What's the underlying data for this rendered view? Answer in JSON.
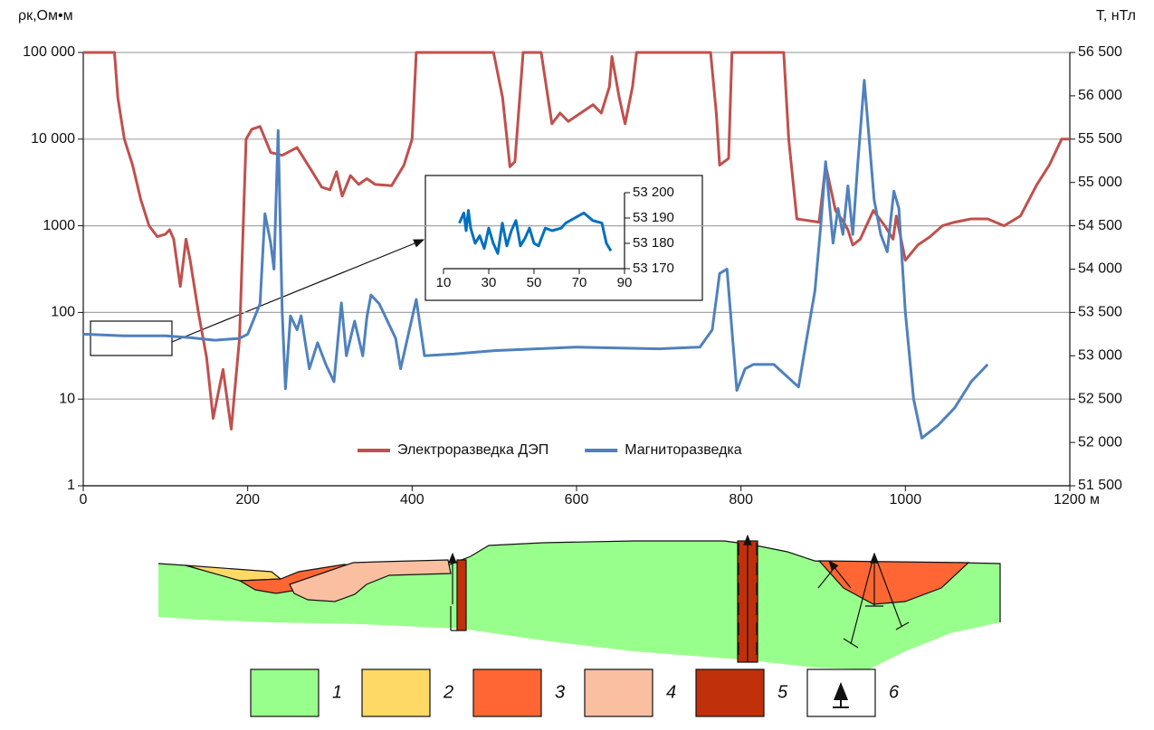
{
  "chart_data": [
    {
      "type": "line",
      "x_axis": "x",
      "yscale": "log",
      "grid": true,
      "legend": "bottom",
      "y_label": "ρк,Ом•м",
      "y2_label": "T, нТл",
      "xlim": [
        0,
        1200
      ],
      "xticks": [
        0,
        200,
        400,
        600,
        800,
        1000,
        {
          "value": 1200,
          "label": "1200 м"
        }
      ],
      "ylim": [
        1,
        100000
      ],
      "yticks": [
        1,
        10,
        100,
        1000,
        {
          "value": 10000,
          "label": "10 000"
        },
        {
          "value": 100000,
          "label": "100 000"
        }
      ],
      "y2lim": [
        51500,
        56500
      ],
      "y2ticks": [
        {
          "value": 51500,
          "label": "51 500"
        },
        {
          "value": 52000,
          "label": "52 000"
        },
        {
          "value": 52500,
          "label": "52 500"
        },
        {
          "value": 53000,
          "label": "53 000"
        },
        {
          "value": 53500,
          "label": "53 500"
        },
        {
          "value": 54000,
          "label": "54 000"
        },
        {
          "value": 54500,
          "label": "54 500"
        },
        {
          "value": 55000,
          "label": "55 000"
        },
        {
          "value": 55500,
          "label": "55 500"
        },
        {
          "value": 56000,
          "label": "56 000"
        },
        {
          "value": 56500,
          "label": "56 500"
        }
      ],
      "series": [
        {
          "name": "Электроразведка ДЭП",
          "color": "#c0504d",
          "axis": "y",
          "x": [
            0,
            38,
            42,
            50,
            60,
            70,
            80,
            90,
            100,
            105,
            110,
            118,
            125,
            130,
            140,
            150,
            158,
            170,
            180,
            190,
            198,
            205,
            215,
            228,
            242,
            260,
            280,
            290,
            300,
            308,
            315,
            325,
            335,
            345,
            355,
            375,
            390,
            400,
            405,
            412,
            499,
            510,
            519,
            525,
            535,
            557,
            570,
            580,
            590,
            605,
            620,
            630,
            640,
            643,
            652,
            659,
            668,
            673,
            763,
            770,
            774,
            785,
            789,
            852,
            858,
            868,
            895,
            903,
            915,
            925,
            930,
            936,
            945,
            961,
            975,
            985,
            989,
            1000,
            1015,
            1030,
            1045,
            1060,
            1080,
            1100,
            1120,
            1140,
            1160,
            1175,
            1190,
            1200
          ],
          "values": [
            100000,
            100000,
            30000,
            10000,
            5000,
            2000,
            1000,
            750,
            800,
            900,
            700,
            200,
            700,
            400,
            100,
            30,
            6,
            22,
            4.5,
            50,
            10000,
            13000,
            14000,
            7000,
            6500,
            8000,
            4000,
            2800,
            2600,
            4200,
            2200,
            3800,
            3000,
            3500,
            3000,
            2900,
            5000,
            10000,
            100000,
            100000,
            100000,
            30000,
            4800,
            5500,
            100000,
            100000,
            15000,
            20000,
            16000,
            20000,
            25000,
            20000,
            40000,
            90000,
            30000,
            15000,
            40000,
            100000,
            100000,
            20000,
            5000,
            6000,
            100000,
            100000,
            10000,
            1200,
            1100,
            5000,
            1500,
            1100,
            900,
            600,
            700,
            1500,
            1000,
            700,
            1300,
            400,
            600,
            750,
            1000,
            1100,
            1200,
            1200,
            1000,
            1300,
            3000,
            5000,
            10000,
            10000
          ]
        },
        {
          "name": "Магниторазведка",
          "color": "#4f81bd",
          "axis": "y2",
          "x": [
            0,
            50,
            100,
            130,
            160,
            190,
            200,
            215,
            221,
            228,
            232,
            237,
            242,
            246,
            252,
            260,
            265,
            275,
            285,
            295,
            305,
            314,
            320,
            330,
            340,
            345,
            350,
            360,
            370,
            380,
            386,
            405,
            415,
            450,
            500,
            600,
            700,
            750,
            765,
            774,
            783,
            795,
            805,
            815,
            840,
            870,
            880,
            890,
            897,
            903,
            912,
            918,
            924,
            930,
            936,
            942,
            950,
            955,
            962,
            970,
            978,
            986,
            992,
            1000,
            1010,
            1020,
            1040,
            1060,
            1080,
            1100
          ],
          "values": [
            53250,
            53230,
            53230,
            53210,
            53180,
            53200,
            53250,
            53600,
            54640,
            54300,
            54000,
            55600,
            53500,
            52620,
            53460,
            53300,
            53460,
            52850,
            53150,
            52900,
            52700,
            53610,
            53000,
            53400,
            53000,
            53450,
            53700,
            53600,
            53400,
            53200,
            52850,
            53650,
            53000,
            53020,
            53060,
            53100,
            53080,
            53100,
            53300,
            53950,
            54000,
            52600,
            52850,
            52900,
            52900,
            52640,
            53200,
            53750,
            54500,
            55240,
            54300,
            54700,
            54400,
            54960,
            54400,
            55200,
            56180,
            55600,
            54800,
            54400,
            54200,
            54900,
            54700,
            53500,
            52500,
            52050,
            52200,
            52400,
            52700,
            52900
          ]
        }
      ]
    },
    {
      "type": "line",
      "y_axis_side": "right",
      "xlim": [
        10,
        90
      ],
      "xticks": [
        10,
        30,
        50,
        70,
        90
      ],
      "ylim": [
        53170,
        53200
      ],
      "yticks": [
        {
          "value": 53170,
          "label": "53 170"
        },
        {
          "value": 53180,
          "label": "53 180"
        },
        {
          "value": 53190,
          "label": "53 190"
        },
        {
          "value": 53200,
          "label": "53 200"
        }
      ],
      "series": [
        {
          "color": "#0070c0",
          "x": [
            17,
            19,
            20,
            21,
            22,
            24,
            26,
            28,
            30,
            32,
            34,
            36,
            38,
            40,
            42,
            44,
            46,
            48,
            50,
            52,
            55,
            58,
            62,
            64,
            68,
            72,
            76,
            80,
            82,
            84
          ],
          "values": [
            53188,
            53192,
            53185,
            53193,
            53186,
            53180,
            53183,
            53178,
            53186,
            53180,
            53176,
            53188,
            53179,
            53185,
            53189,
            53179,
            53182,
            53186,
            53180,
            53179,
            53186,
            53185,
            53186,
            53188,
            53190,
            53192,
            53189,
            53188,
            53180,
            53177
          ]
        }
      ]
    }
  ],
  "section_legend": [
    {
      "label": "1",
      "color": "#99ff8c"
    },
    {
      "label": "2",
      "color": "#ffd966"
    },
    {
      "label": "3",
      "color": "#ff6633"
    },
    {
      "label": "4",
      "color": "#f9bfa0"
    },
    {
      "label": "5",
      "color": "#c0300a"
    },
    {
      "label": "6",
      "color": "#ffffff"
    }
  ]
}
